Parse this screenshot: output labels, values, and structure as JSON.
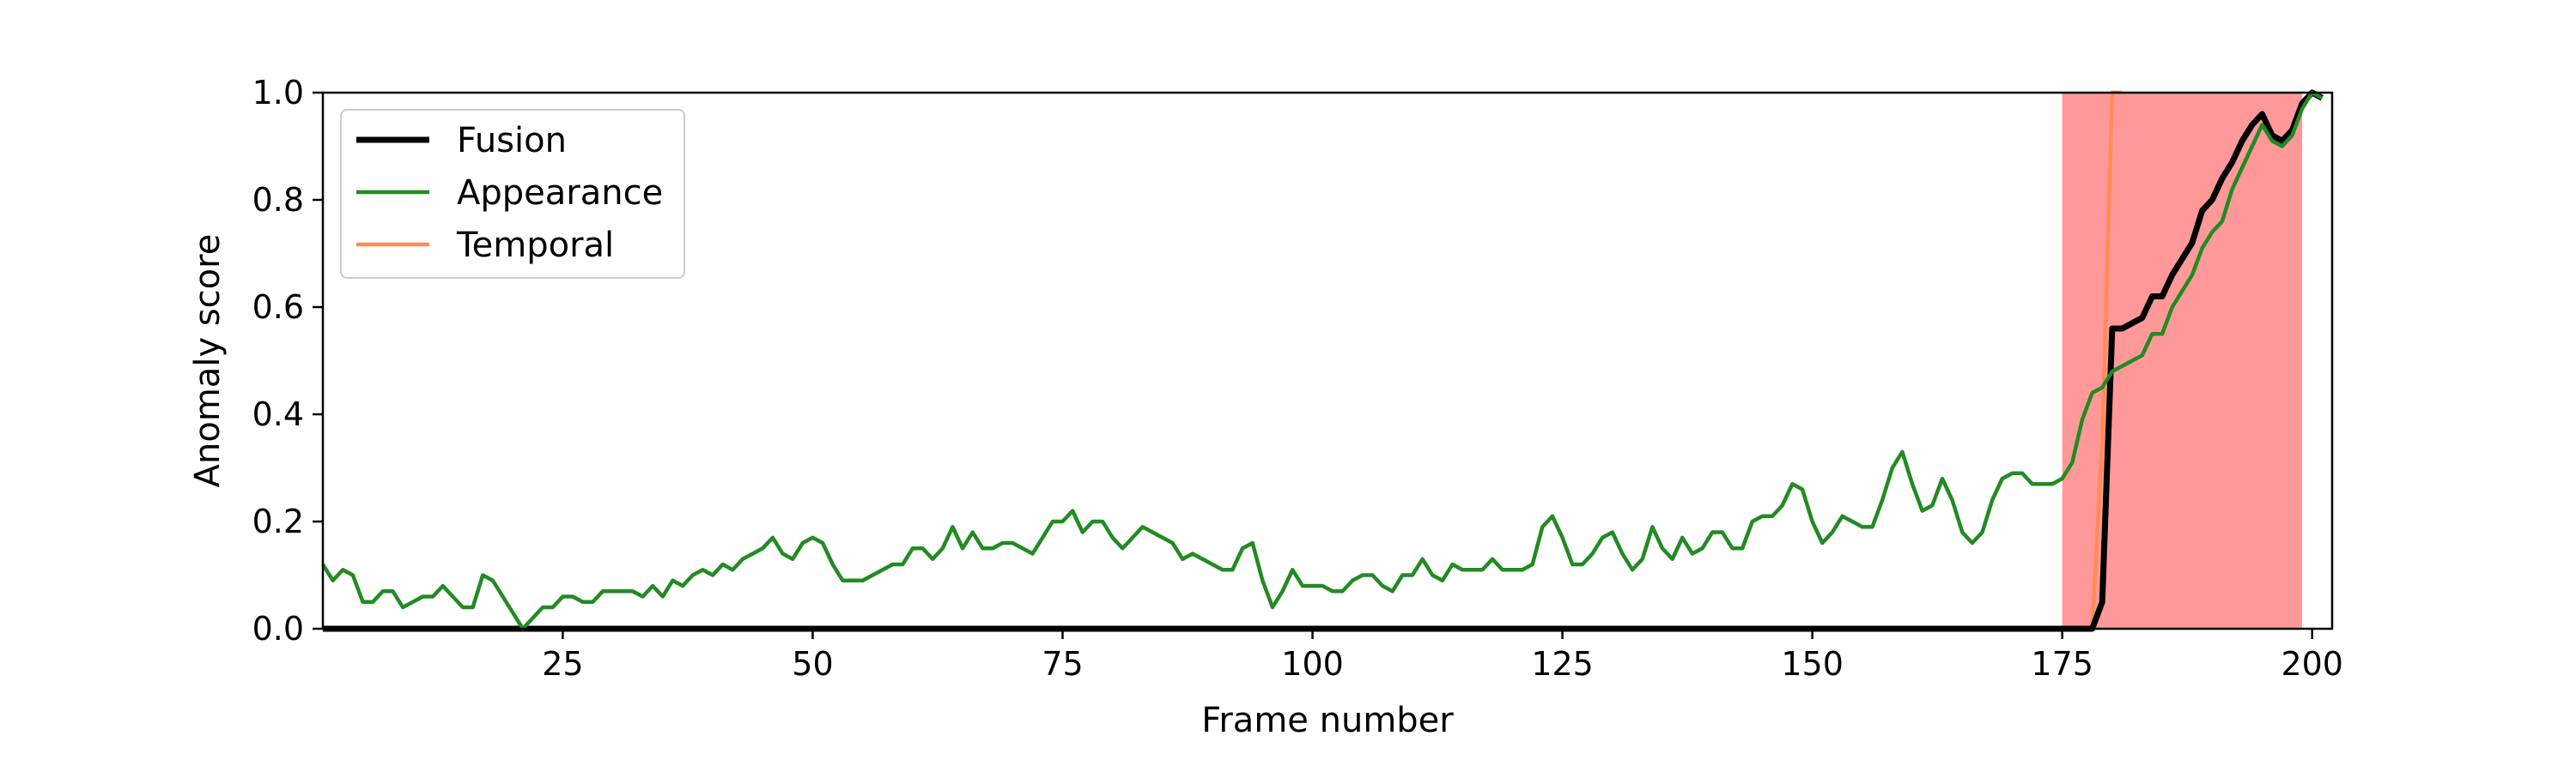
{
  "chart_data": {
    "type": "line",
    "xlabel": "Frame number",
    "ylabel": "Anomaly score",
    "xlim": [
      1,
      202
    ],
    "ylim": [
      0.0,
      1.0
    ],
    "x_ticks": [
      25,
      50,
      75,
      100,
      125,
      150,
      175,
      200
    ],
    "y_ticks": [
      0.0,
      0.2,
      0.4,
      0.6,
      0.8,
      1.0
    ],
    "x_tick_labels": [
      "25",
      "50",
      "75",
      "100",
      "125",
      "150",
      "175",
      "200"
    ],
    "y_tick_labels": [
      "0.0",
      "0.2",
      "0.4",
      "0.6",
      "0.8",
      "1.0"
    ],
    "grid": false,
    "legend_position": "top-left",
    "highlight_region": {
      "x_start": 175,
      "x_end": 199,
      "color": "#ff9999"
    },
    "series": [
      {
        "name": "Fusion",
        "color": "#000000",
        "points": [
          [
            1,
            0.0
          ],
          [
            178,
            0.0
          ],
          [
            179,
            0.05
          ],
          [
            180,
            0.56
          ],
          [
            181,
            0.56
          ],
          [
            182,
            0.57
          ],
          [
            183,
            0.58
          ],
          [
            184,
            0.62
          ],
          [
            185,
            0.62
          ],
          [
            186,
            0.66
          ],
          [
            187,
            0.69
          ],
          [
            188,
            0.72
          ],
          [
            189,
            0.78
          ],
          [
            190,
            0.8
          ],
          [
            191,
            0.84
          ],
          [
            192,
            0.87
          ],
          [
            193,
            0.91
          ],
          [
            194,
            0.94
          ],
          [
            195,
            0.96
          ],
          [
            196,
            0.92
          ],
          [
            197,
            0.91
          ],
          [
            198,
            0.93
          ],
          [
            199,
            0.98
          ],
          [
            200,
            1.0
          ],
          [
            201,
            0.99
          ]
        ]
      },
      {
        "name": "Appearance",
        "color": "#228b22",
        "points": [
          [
            1,
            0.12
          ],
          [
            2,
            0.09
          ],
          [
            3,
            0.11
          ],
          [
            4,
            0.1
          ],
          [
            5,
            0.05
          ],
          [
            6,
            0.05
          ],
          [
            7,
            0.07
          ],
          [
            8,
            0.07
          ],
          [
            9,
            0.04
          ],
          [
            10,
            0.05
          ],
          [
            11,
            0.06
          ],
          [
            12,
            0.06
          ],
          [
            13,
            0.08
          ],
          [
            14,
            0.06
          ],
          [
            15,
            0.04
          ],
          [
            16,
            0.04
          ],
          [
            17,
            0.1
          ],
          [
            18,
            0.09
          ],
          [
            19,
            0.06
          ],
          [
            20,
            0.03
          ],
          [
            21,
            0.0
          ],
          [
            22,
            0.02
          ],
          [
            23,
            0.04
          ],
          [
            24,
            0.04
          ],
          [
            25,
            0.06
          ],
          [
            26,
            0.06
          ],
          [
            27,
            0.05
          ],
          [
            28,
            0.05
          ],
          [
            29,
            0.07
          ],
          [
            30,
            0.07
          ],
          [
            31,
            0.07
          ],
          [
            32,
            0.07
          ],
          [
            33,
            0.06
          ],
          [
            34,
            0.08
          ],
          [
            35,
            0.06
          ],
          [
            36,
            0.09
          ],
          [
            37,
            0.08
          ],
          [
            38,
            0.1
          ],
          [
            39,
            0.11
          ],
          [
            40,
            0.1
          ],
          [
            41,
            0.12
          ],
          [
            42,
            0.11
          ],
          [
            43,
            0.13
          ],
          [
            44,
            0.14
          ],
          [
            45,
            0.15
          ],
          [
            46,
            0.17
          ],
          [
            47,
            0.14
          ],
          [
            48,
            0.13
          ],
          [
            49,
            0.16
          ],
          [
            50,
            0.17
          ],
          [
            51,
            0.16
          ],
          [
            52,
            0.12
          ],
          [
            53,
            0.09
          ],
          [
            54,
            0.09
          ],
          [
            55,
            0.09
          ],
          [
            56,
            0.1
          ],
          [
            57,
            0.11
          ],
          [
            58,
            0.12
          ],
          [
            59,
            0.12
          ],
          [
            60,
            0.15
          ],
          [
            61,
            0.15
          ],
          [
            62,
            0.13
          ],
          [
            63,
            0.15
          ],
          [
            64,
            0.19
          ],
          [
            65,
            0.15
          ],
          [
            66,
            0.18
          ],
          [
            67,
            0.15
          ],
          [
            68,
            0.15
          ],
          [
            69,
            0.16
          ],
          [
            70,
            0.16
          ],
          [
            71,
            0.15
          ],
          [
            72,
            0.14
          ],
          [
            73,
            0.17
          ],
          [
            74,
            0.2
          ],
          [
            75,
            0.2
          ],
          [
            76,
            0.22
          ],
          [
            77,
            0.18
          ],
          [
            78,
            0.2
          ],
          [
            79,
            0.2
          ],
          [
            80,
            0.17
          ],
          [
            81,
            0.15
          ],
          [
            82,
            0.17
          ],
          [
            83,
            0.19
          ],
          [
            84,
            0.18
          ],
          [
            85,
            0.17
          ],
          [
            86,
            0.16
          ],
          [
            87,
            0.13
          ],
          [
            88,
            0.14
          ],
          [
            89,
            0.13
          ],
          [
            90,
            0.12
          ],
          [
            91,
            0.11
          ],
          [
            92,
            0.11
          ],
          [
            93,
            0.15
          ],
          [
            94,
            0.16
          ],
          [
            95,
            0.09
          ],
          [
            96,
            0.04
          ],
          [
            97,
            0.07
          ],
          [
            98,
            0.11
          ],
          [
            99,
            0.08
          ],
          [
            100,
            0.08
          ],
          [
            101,
            0.08
          ],
          [
            102,
            0.07
          ],
          [
            103,
            0.07
          ],
          [
            104,
            0.09
          ],
          [
            105,
            0.1
          ],
          [
            106,
            0.1
          ],
          [
            107,
            0.08
          ],
          [
            108,
            0.07
          ],
          [
            109,
            0.1
          ],
          [
            110,
            0.1
          ],
          [
            111,
            0.13
          ],
          [
            112,
            0.1
          ],
          [
            113,
            0.09
          ],
          [
            114,
            0.12
          ],
          [
            115,
            0.11
          ],
          [
            116,
            0.11
          ],
          [
            117,
            0.11
          ],
          [
            118,
            0.13
          ],
          [
            119,
            0.11
          ],
          [
            120,
            0.11
          ],
          [
            121,
            0.11
          ],
          [
            122,
            0.12
          ],
          [
            123,
            0.19
          ],
          [
            124,
            0.21
          ],
          [
            125,
            0.17
          ],
          [
            126,
            0.12
          ],
          [
            127,
            0.12
          ],
          [
            128,
            0.14
          ],
          [
            129,
            0.17
          ],
          [
            130,
            0.18
          ],
          [
            131,
            0.14
          ],
          [
            132,
            0.11
          ],
          [
            133,
            0.13
          ],
          [
            134,
            0.19
          ],
          [
            135,
            0.15
          ],
          [
            136,
            0.13
          ],
          [
            137,
            0.17
          ],
          [
            138,
            0.14
          ],
          [
            139,
            0.15
          ],
          [
            140,
            0.18
          ],
          [
            141,
            0.18
          ],
          [
            142,
            0.15
          ],
          [
            143,
            0.15
          ],
          [
            144,
            0.2
          ],
          [
            145,
            0.21
          ],
          [
            146,
            0.21
          ],
          [
            147,
            0.23
          ],
          [
            148,
            0.27
          ],
          [
            149,
            0.26
          ],
          [
            150,
            0.2
          ],
          [
            151,
            0.16
          ],
          [
            152,
            0.18
          ],
          [
            153,
            0.21
          ],
          [
            154,
            0.2
          ],
          [
            155,
            0.19
          ],
          [
            156,
            0.19
          ],
          [
            157,
            0.24
          ],
          [
            158,
            0.3
          ],
          [
            159,
            0.33
          ],
          [
            160,
            0.27
          ],
          [
            161,
            0.22
          ],
          [
            162,
            0.23
          ],
          [
            163,
            0.28
          ],
          [
            164,
            0.24
          ],
          [
            165,
            0.18
          ],
          [
            166,
            0.16
          ],
          [
            167,
            0.18
          ],
          [
            168,
            0.24
          ],
          [
            169,
            0.28
          ],
          [
            170,
            0.29
          ],
          [
            171,
            0.29
          ],
          [
            172,
            0.27
          ],
          [
            173,
            0.27
          ],
          [
            174,
            0.27
          ],
          [
            175,
            0.28
          ],
          [
            176,
            0.31
          ],
          [
            177,
            0.39
          ],
          [
            178,
            0.44
          ],
          [
            179,
            0.45
          ],
          [
            180,
            0.48
          ],
          [
            181,
            0.49
          ],
          [
            182,
            0.5
          ],
          [
            183,
            0.51
          ],
          [
            184,
            0.55
          ],
          [
            185,
            0.55
          ],
          [
            186,
            0.6
          ],
          [
            187,
            0.63
          ],
          [
            188,
            0.66
          ],
          [
            189,
            0.71
          ],
          [
            190,
            0.74
          ],
          [
            191,
            0.76
          ],
          [
            192,
            0.82
          ],
          [
            193,
            0.86
          ],
          [
            194,
            0.9
          ],
          [
            195,
            0.94
          ],
          [
            196,
            0.91
          ],
          [
            197,
            0.9
          ],
          [
            198,
            0.92
          ],
          [
            199,
            0.97
          ],
          [
            200,
            1.0
          ],
          [
            201,
            0.99
          ]
        ]
      },
      {
        "name": "Temporal",
        "color": "#ff8c55",
        "points": [
          [
            1,
            0.0
          ],
          [
            177,
            0.0
          ],
          [
            178,
            0.0
          ],
          [
            179,
            0.35
          ],
          [
            180,
            1.0
          ],
          [
            181,
            1.0
          ]
        ]
      }
    ]
  }
}
